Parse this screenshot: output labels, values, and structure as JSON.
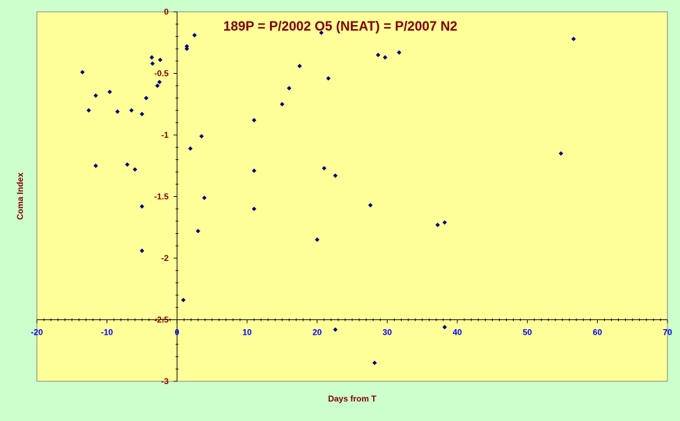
{
  "chart_data": {
    "type": "scatter",
    "title": "189P = P/2002 O5 (NEAT) = P/2007 N2",
    "xlabel": "Days from T",
    "ylabel": "Coma Index",
    "xlim": [
      -20,
      70
    ],
    "ylim": [
      -3,
      0
    ],
    "x_ticks": [
      -20,
      -10,
      0,
      10,
      20,
      30,
      40,
      50,
      60,
      70
    ],
    "x_tick_labels": [
      "-20",
      "-10",
      "0",
      "10",
      "20",
      "30",
      "40",
      "50",
      "60",
      "70"
    ],
    "y_ticks": [
      0,
      -0.5,
      -1,
      -1.5,
      -2,
      -2.5,
      -3
    ],
    "y_tick_labels": [
      "0",
      "-0.5",
      "-1",
      "-1.5",
      "-2",
      "-2.5",
      "-3"
    ],
    "x_axis_crosses_y": -2.5,
    "y_axis_crosses_x": 0,
    "grid": false,
    "legend": "none",
    "colors": {
      "plot_bg": "#ffff99",
      "page_bg": "#ccffcc",
      "marker": "#000080",
      "title": "#800000",
      "axis_label": "#800000",
      "tick_label_x": "#0000ff",
      "tick_label_y": "#800000"
    },
    "series": [
      {
        "points": [
          {
            "x": -13.5,
            "y": -0.49
          },
          {
            "x": -12.6,
            "y": -0.8
          },
          {
            "x": -11.6,
            "y": -0.68
          },
          {
            "x": -11.6,
            "y": -1.25
          },
          {
            "x": -9.6,
            "y": -0.65
          },
          {
            "x": -8.5,
            "y": -0.81
          },
          {
            "x": -7.1,
            "y": -1.24
          },
          {
            "x": -6.5,
            "y": -0.8
          },
          {
            "x": -6.0,
            "y": -1.28
          },
          {
            "x": -5.0,
            "y": -0.83
          },
          {
            "x": -5.0,
            "y": -1.58
          },
          {
            "x": -5.0,
            "y": -1.94
          },
          {
            "x": -4.4,
            "y": -0.7
          },
          {
            "x": -3.6,
            "y": -0.37
          },
          {
            "x": -3.5,
            "y": -0.42
          },
          {
            "x": -2.8,
            "y": -0.6
          },
          {
            "x": -2.5,
            "y": -0.57
          },
          {
            "x": -2.4,
            "y": -0.39
          },
          {
            "x": 0.9,
            "y": -2.34
          },
          {
            "x": 1.4,
            "y": -0.28
          },
          {
            "x": 1.4,
            "y": -0.3
          },
          {
            "x": 1.9,
            "y": -1.11
          },
          {
            "x": 2.5,
            "y": -0.19
          },
          {
            "x": 3.0,
            "y": -1.78
          },
          {
            "x": 3.5,
            "y": -1.01
          },
          {
            "x": 3.9,
            "y": -1.51
          },
          {
            "x": 11.0,
            "y": -0.88
          },
          {
            "x": 11.0,
            "y": -1.29
          },
          {
            "x": 11.0,
            "y": -1.6
          },
          {
            "x": 15.0,
            "y": -0.75
          },
          {
            "x": 16.0,
            "y": -0.62
          },
          {
            "x": 17.5,
            "y": -0.44
          },
          {
            "x": 20.0,
            "y": -1.85
          },
          {
            "x": 20.6,
            "y": -0.17
          },
          {
            "x": 21.0,
            "y": -1.27
          },
          {
            "x": 21.6,
            "y": -0.54
          },
          {
            "x": 22.6,
            "y": -1.33
          },
          {
            "x": 22.6,
            "y": -2.58
          },
          {
            "x": 27.6,
            "y": -1.57
          },
          {
            "x": 28.2,
            "y": -2.85
          },
          {
            "x": 28.7,
            "y": -0.35
          },
          {
            "x": 29.7,
            "y": -0.37
          },
          {
            "x": 31.7,
            "y": -0.33
          },
          {
            "x": 37.2,
            "y": -1.73
          },
          {
            "x": 38.2,
            "y": -1.71
          },
          {
            "x": 38.2,
            "y": -2.56
          },
          {
            "x": 54.8,
            "y": -1.15
          },
          {
            "x": 56.6,
            "y": -0.22
          }
        ]
      }
    ]
  }
}
